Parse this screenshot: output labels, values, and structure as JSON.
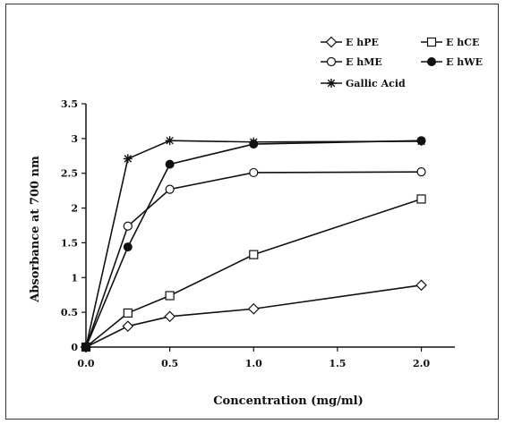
{
  "chart_data": {
    "type": "line",
    "title": "",
    "xlabel": "Concentration (mg/ml)",
    "ylabel": "Absorbance at 700 nm",
    "xlim": [
      0,
      2.2
    ],
    "ylim": [
      0,
      3.5
    ],
    "xticks": [
      "0.0",
      "0.5",
      "1.0",
      "1.5",
      "2.0"
    ],
    "yticks": [
      "0",
      "0.5",
      "1",
      "1.5",
      "2",
      "2.5",
      "3",
      "3.5"
    ],
    "x": [
      0,
      0.25,
      0.5,
      1.0,
      2.0
    ],
    "legend_position": "top-right",
    "grid": false,
    "series": [
      {
        "name": "E hPE",
        "marker": "diamond-open",
        "values": [
          0,
          0.3,
          0.44,
          0.55,
          0.89
        ]
      },
      {
        "name": "E hCE",
        "marker": "square-open",
        "values": [
          0,
          0.49,
          0.74,
          1.33,
          2.13
        ]
      },
      {
        "name": "E hME",
        "marker": "circle-open",
        "values": [
          0,
          1.74,
          2.27,
          2.51,
          2.52
        ]
      },
      {
        "name": "E hWE",
        "marker": "circle-filled",
        "values": [
          0,
          1.44,
          2.63,
          2.92,
          2.97
        ]
      },
      {
        "name": "Gallic Acid",
        "marker": "star",
        "values": [
          0,
          2.71,
          2.97,
          2.95,
          2.96
        ]
      }
    ]
  }
}
